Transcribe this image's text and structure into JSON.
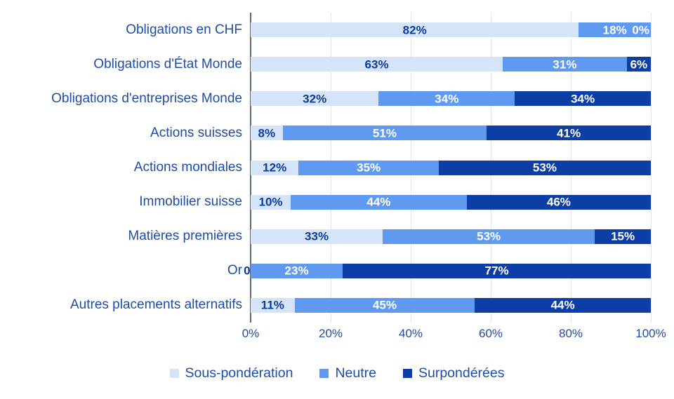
{
  "chart_data": {
    "type": "bar",
    "orientation": "horizontal",
    "stacked": true,
    "title": "",
    "xlabel": "",
    "ylabel": "",
    "xlim": [
      0,
      100
    ],
    "grid": true,
    "legend_position": "bottom",
    "categories": [
      "Obligations en CHF",
      "Obligations d'État Monde",
      "Obligations d'entreprises Monde",
      "Actions suisses",
      "Actions mondiales",
      "Immobilier suisse",
      "Matières premières",
      "Or",
      "Autres placements alternatifs"
    ],
    "series": [
      {
        "name": "Sous-pondération",
        "color": "#d5e4f9",
        "label_color": "#0c3c9e",
        "values": [
          82,
          63,
          32,
          8,
          12,
          10,
          33,
          0,
          11
        ]
      },
      {
        "name": "Neutre",
        "color": "#5f99f0",
        "label_color": "#ffffff",
        "values": [
          18,
          31,
          34,
          51,
          35,
          44,
          53,
          23,
          45
        ]
      },
      {
        "name": "Surpondérées",
        "color": "#0d3ea6",
        "label_color": "#ffffff",
        "values": [
          0,
          6,
          34,
          41,
          53,
          46,
          15,
          77,
          44
        ]
      }
    ],
    "x_ticks": [
      "0%",
      "20%",
      "40%",
      "60%",
      "80%",
      "100%"
    ],
    "x_tick_values": [
      0,
      20,
      40,
      60,
      80,
      100
    ],
    "value_label_suffix": "%"
  },
  "colors": {
    "background": "#ffffff",
    "gridline": "#dde7f2",
    "axis_line": "#5c6873",
    "category_label_text": "#1d4ca9",
    "tick_label_text": "#2349a0",
    "legend_text": "#1d4ca9"
  }
}
